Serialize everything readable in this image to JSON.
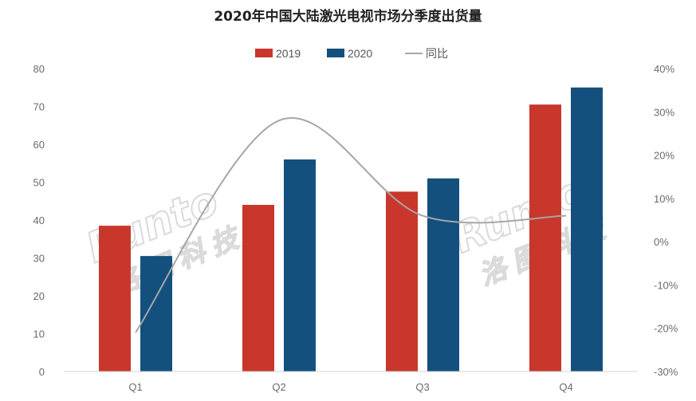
{
  "chart_data": {
    "type": "bar",
    "title": "2020年中国大陆激光电视市场分季度出货量",
    "categories": [
      "Q1",
      "Q2",
      "Q3",
      "Q4"
    ],
    "series": [
      {
        "name": "2019",
        "values": [
          38.5,
          44,
          47.5,
          70.5
        ],
        "color": "#c9372c"
      },
      {
        "name": "2020",
        "values": [
          30.5,
          56,
          51,
          75
        ],
        "color": "#13507e"
      }
    ],
    "line_series": {
      "name": "同比",
      "axis": "right",
      "values": [
        -21,
        28,
        6,
        6
      ],
      "color": "#a6a6a6"
    },
    "ylim": [
      0,
      80
    ],
    "y_ticks": [
      "0",
      "10",
      "20",
      "30",
      "40",
      "50",
      "60",
      "70",
      "80"
    ],
    "y2lim": [
      -30,
      40
    ],
    "y2_ticks": [
      "-30%",
      "-20%",
      "-10%",
      "0%",
      "10%",
      "20%",
      "30%",
      "40%"
    ],
    "legend_position": "top",
    "grid": false
  },
  "watermark": {
    "text": "Runto",
    "chinese": "洛图科技"
  }
}
